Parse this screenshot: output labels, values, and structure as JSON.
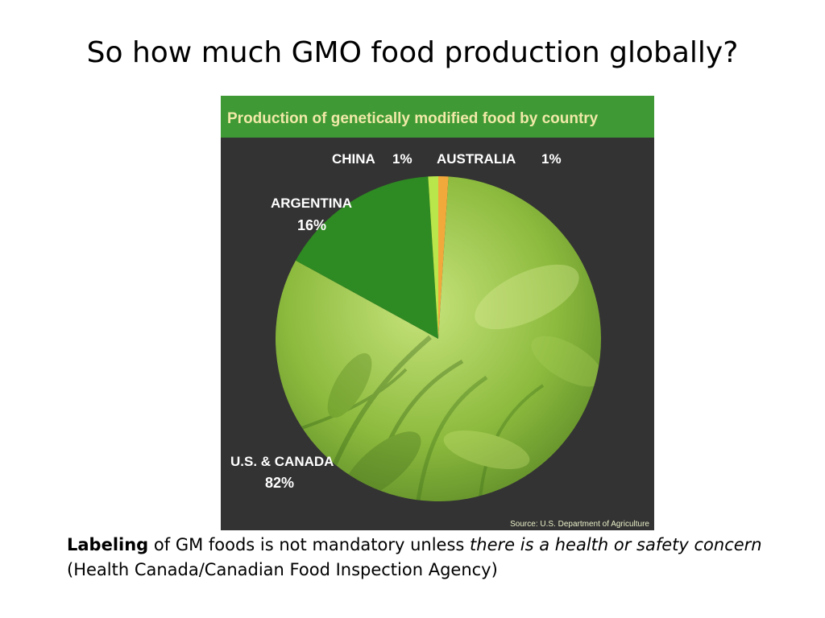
{
  "slide": {
    "title": "So how much GMO food production globally?",
    "caption": {
      "bold": "Labeling",
      "text1": "of GM foods is not mandatory unless",
      "italic": "there is a health or safety concern",
      "text2": "(Health Canada/Canadian Food Inspection Agency)"
    }
  },
  "chart_data": {
    "type": "pie",
    "title": "Production of genetically modified food by country",
    "source": "Source: U.S. Department of Agriculture",
    "slices": [
      {
        "name": "AUSTRALIA",
        "value": 1,
        "value_label": "1%",
        "color": "#f2a93b"
      },
      {
        "name": "U.S. & CANADA",
        "value": 82,
        "value_label": "82%",
        "color": "#6f9c2a"
      },
      {
        "name": "ARGENTINA",
        "value": 16,
        "value_label": "16%",
        "color": "#2e8a22"
      },
      {
        "name": "CHINA",
        "value": 1,
        "value_label": "1%",
        "color": "#b9e64a"
      }
    ],
    "colors": {
      "header_bg": "#3f9a35",
      "header_text": "#f1e9a8",
      "panel_bg": "#333333",
      "label_text": "#ffffff"
    }
  }
}
